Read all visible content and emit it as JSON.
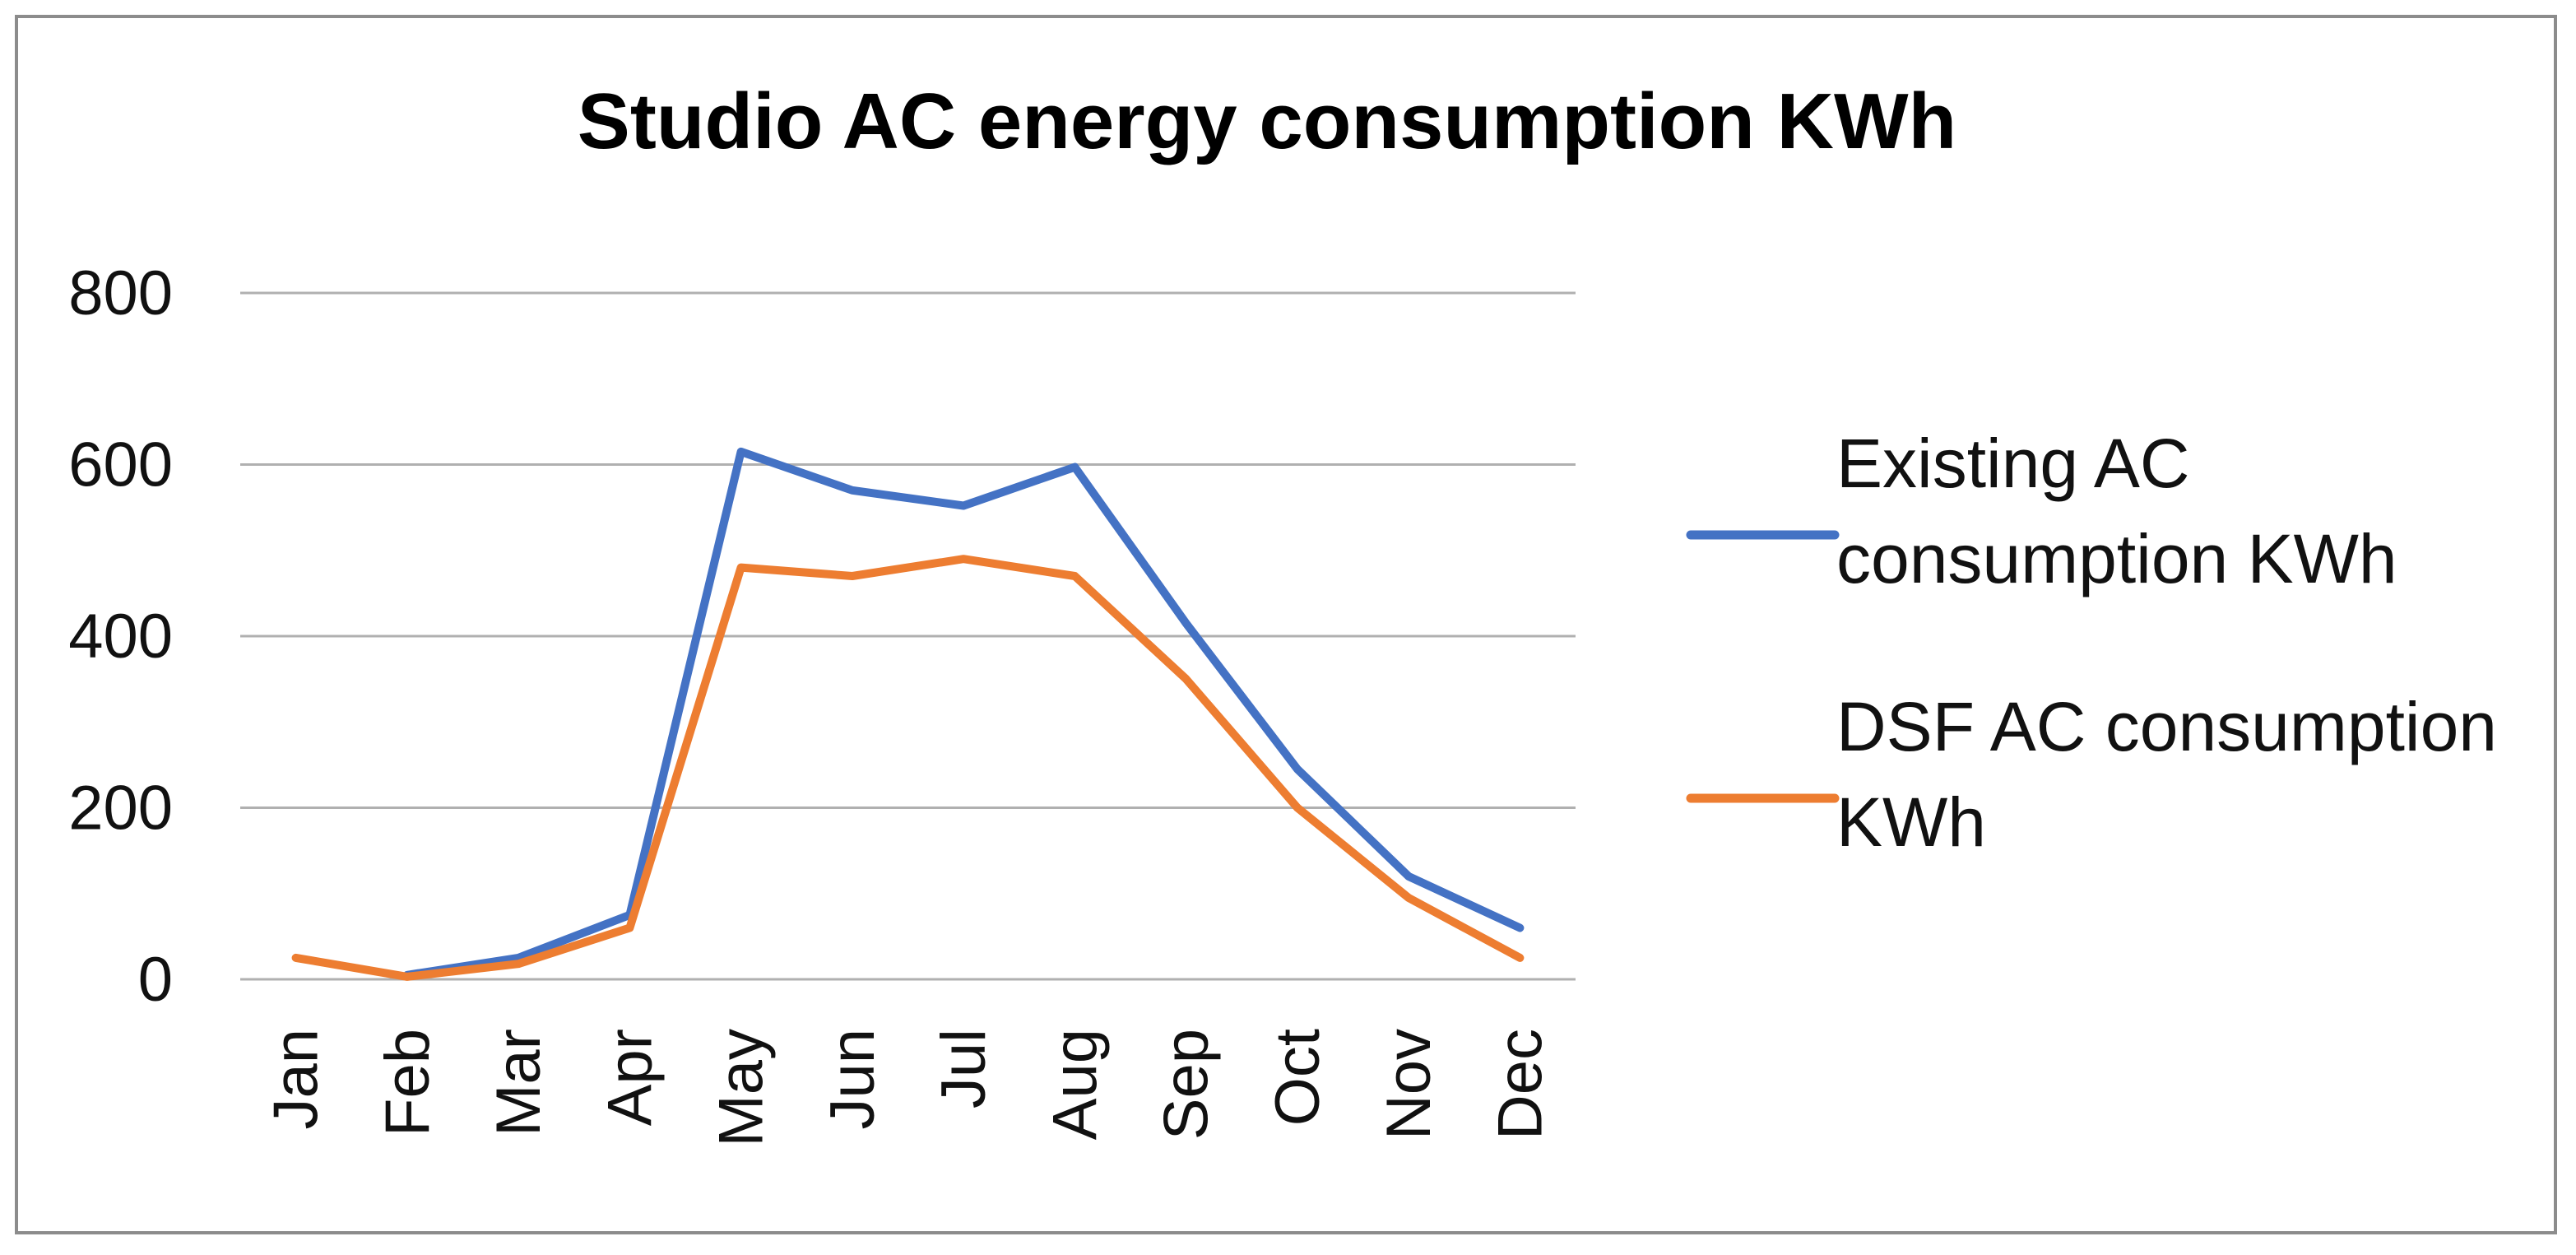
{
  "chart_data": {
    "type": "line",
    "title": "Studio AC energy consumption KWh",
    "xlabel": "",
    "ylabel": "",
    "ylim": [
      0,
      800
    ],
    "yticks": [
      "0",
      "200",
      "400",
      "600",
      "800"
    ],
    "categories": [
      "Jan",
      "Feb",
      "Mar",
      "Apr",
      "May",
      "Jun",
      "Jul",
      "Aug",
      "Sep",
      "Oct",
      "Nov",
      "Dec"
    ],
    "grid": true,
    "legend_position": "right",
    "series": [
      {
        "name": "Existing AC consumption KWh",
        "legend_lines": [
          "Existing AC",
          "consumption KWh"
        ],
        "color": "#4472C4",
        "values": [
          null,
          5,
          25,
          75,
          615,
          570,
          552,
          597,
          415,
          245,
          120,
          60
        ]
      },
      {
        "name": "DSF AC consumption KWh",
        "legend_lines": [
          "DSF AC consumption",
          "KWh"
        ],
        "color": "#ED7D31",
        "values": [
          25,
          3,
          18,
          60,
          480,
          470,
          490,
          470,
          350,
          200,
          95,
          25
        ]
      }
    ]
  }
}
